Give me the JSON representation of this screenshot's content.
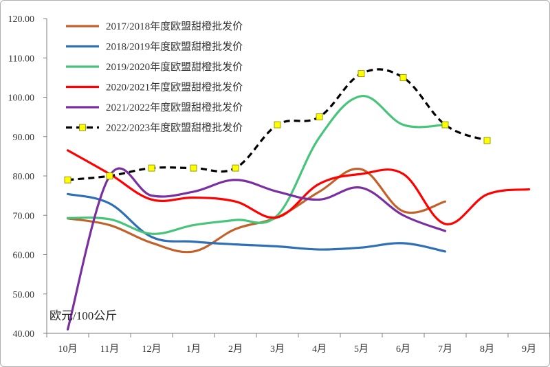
{
  "chart_data": {
    "type": "line",
    "ylabel": "欧元/100公斤",
    "ylim": [
      40,
      120
    ],
    "yticks": [
      "40.00",
      "50.00",
      "60.00",
      "70.00",
      "80.00",
      "90.00",
      "100.00",
      "110.00",
      "120.00"
    ],
    "categories": [
      "10月",
      "11月",
      "12月",
      "1月",
      "2月",
      "3月",
      "4月",
      "5月",
      "6月",
      "7月",
      "8月",
      "9月"
    ],
    "grid": false,
    "legend_position": "top-left",
    "series": [
      {
        "name": "2017/2018年度欧盟甜橙批发价",
        "color": "#c0622a",
        "style": "solid",
        "marker": "none",
        "values": [
          69.2,
          67.5,
          63.0,
          60.8,
          66.5,
          69.5,
          76.0,
          81.7,
          71.0,
          73.5,
          null,
          null
        ]
      },
      {
        "name": "2018/2019年度欧盟甜橙批发价",
        "color": "#2e6fb5",
        "style": "solid",
        "marker": "none",
        "values": [
          75.4,
          73.0,
          64.5,
          63.3,
          62.6,
          62.1,
          61.3,
          61.8,
          62.9,
          60.8,
          null,
          null
        ]
      },
      {
        "name": "2019/2020年度欧盟甜橙批发价",
        "color": "#45c47a",
        "style": "solid",
        "marker": "none",
        "values": [
          69.3,
          69.0,
          65.3,
          67.5,
          68.8,
          70.0,
          89.8,
          100.3,
          93.0,
          93.0,
          null,
          null
        ]
      },
      {
        "name": "2020/2021年度欧盟甜橙批发价",
        "color": "#ff0000",
        "style": "solid",
        "marker": "none",
        "values": [
          86.5,
          80.5,
          74.0,
          74.5,
          73.5,
          69.5,
          78.0,
          80.5,
          80.5,
          67.8,
          75.3,
          76.6
        ]
      },
      {
        "name": "2021/2022年度欧盟甜橙批发价",
        "color": "#7a2fa0",
        "style": "solid",
        "marker": "none",
        "values": [
          41.0,
          80.0,
          75.0,
          76.0,
          79.0,
          76.0,
          74.0,
          77.0,
          70.0,
          66.0,
          null,
          null
        ]
      },
      {
        "name": "2022/2023年度欧盟甜橙批发价",
        "color": "#000000",
        "style": "dashed",
        "marker": "yellow-square",
        "marker_color": "#ffff00",
        "values": [
          79.0,
          80.0,
          82.0,
          82.0,
          82.0,
          93.0,
          95.0,
          106.0,
          105.0,
          93.0,
          89.0,
          null
        ]
      }
    ]
  }
}
